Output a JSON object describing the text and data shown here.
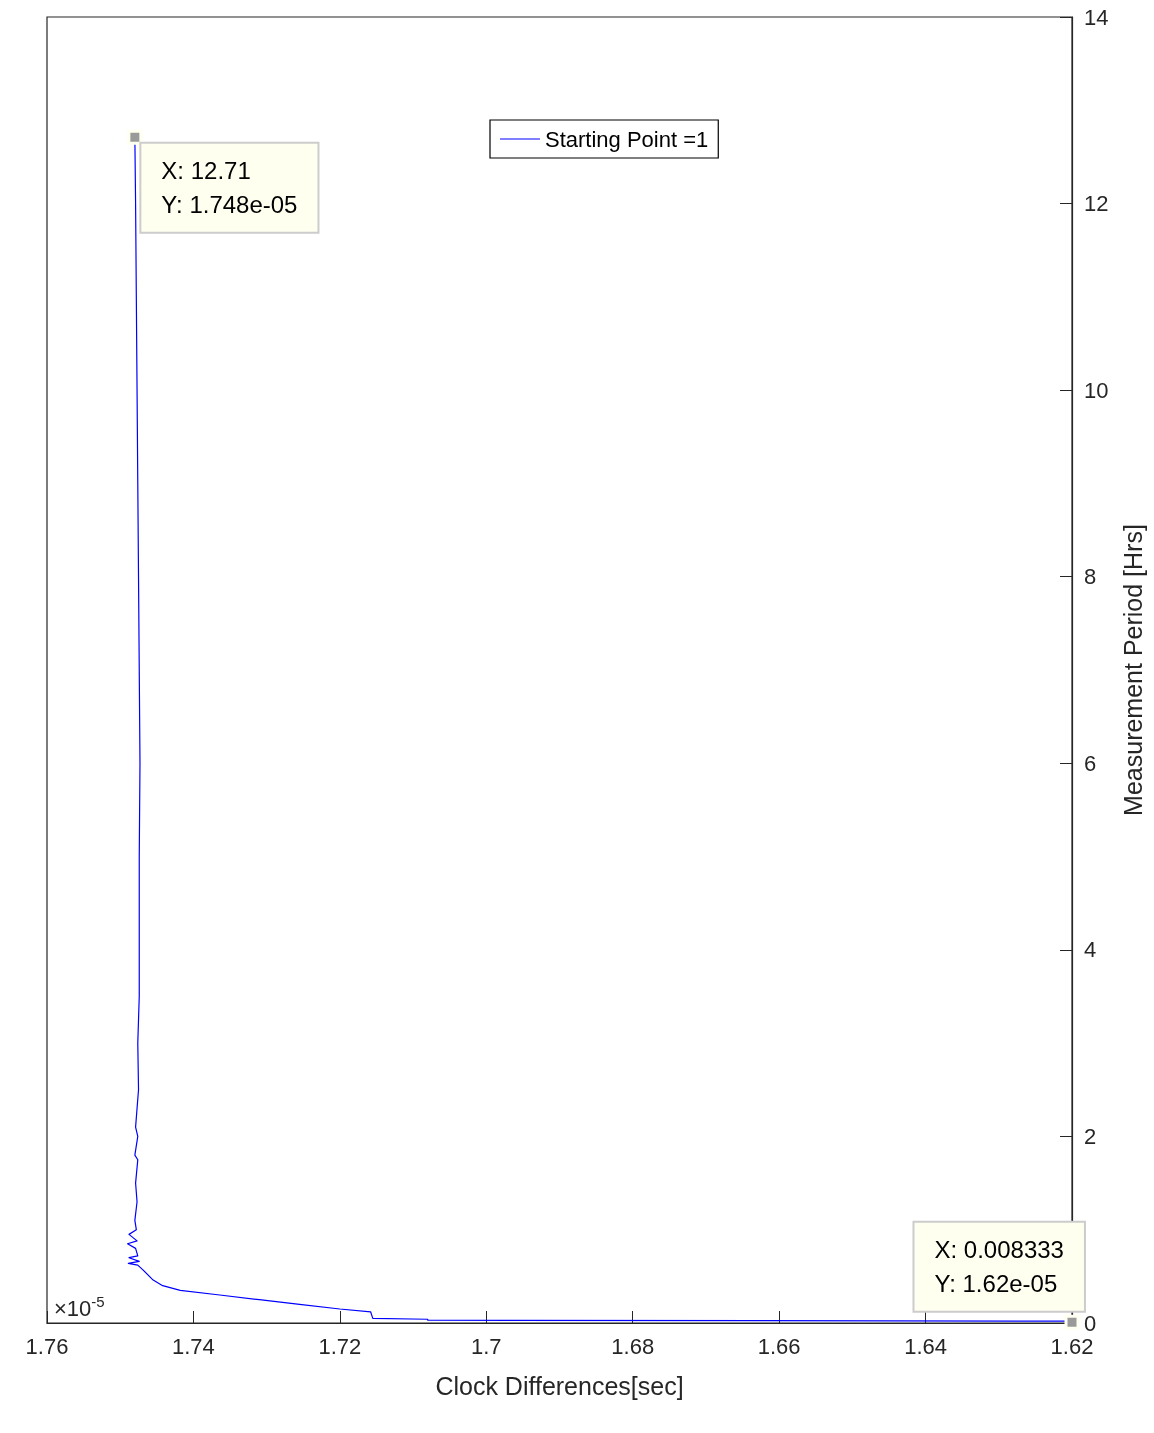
{
  "chart_data": {
    "type": "line",
    "xlabel": "Clock Differences[sec]",
    "ylabel": "Measurement Period [Hrs]",
    "series": [
      {
        "name": "Starting Point =1",
        "color": "#0000ff",
        "x": [
          1.62,
          1.62,
          1.708,
          1.708,
          1.7155,
          1.7158,
          1.72,
          1.7255,
          1.731,
          1.7364,
          1.7418,
          1.7442,
          1.7455,
          1.7469,
          1.7476,
          1.7489,
          1.7474,
          1.7488,
          1.7476,
          1.7479,
          1.749,
          1.7477,
          1.7488,
          1.7478,
          1.748,
          1.7477,
          1.7479,
          1.7476,
          1.748,
          1.7476,
          1.7479,
          1.7475,
          1.7476,
          1.7474,
          1.7474,
          1.7474,
          1.7473,
          1.7474,
          1.7475,
          1.7476,
          1.7477,
          1.7478,
          1.7479,
          1.748
        ],
        "values": [
          0.01,
          0.02,
          0.03,
          0.04,
          0.05,
          0.12,
          0.15,
          0.2,
          0.25,
          0.3,
          0.35,
          0.4,
          0.46,
          0.57,
          0.62,
          0.64,
          0.66,
          0.7,
          0.72,
          0.8,
          0.85,
          0.88,
          0.95,
          1.0,
          1.1,
          1.3,
          1.5,
          1.75,
          1.8,
          2.0,
          2.1,
          2.5,
          3.0,
          3.5,
          4,
          5,
          6,
          7,
          8,
          9,
          10,
          11,
          12,
          12.71
        ]
      }
    ],
    "xlim": [
      1.76,
      1.62
    ],
    "xticks": [
      1.62,
      1.64,
      1.66,
      1.68,
      1.7,
      1.72,
      1.74,
      1.76
    ],
    "ylim": [
      0,
      14
    ],
    "yticks": [
      0,
      2,
      4,
      6,
      8,
      10,
      12,
      14
    ],
    "grid": false,
    "legend": "right",
    "marker": "none",
    "line_style": "solid",
    "annotations": [
      "×10$^{-5}$",
      {
        "text": "X: 0.008333\nY: 1.62e-05",
        "x": 1.62,
        "y": 0.008333
      },
      {
        "text": "X: 12.71\nY: 1.748e-05",
        "x": 1.748,
        "y": 12.71
      }
    ]
  }
}
